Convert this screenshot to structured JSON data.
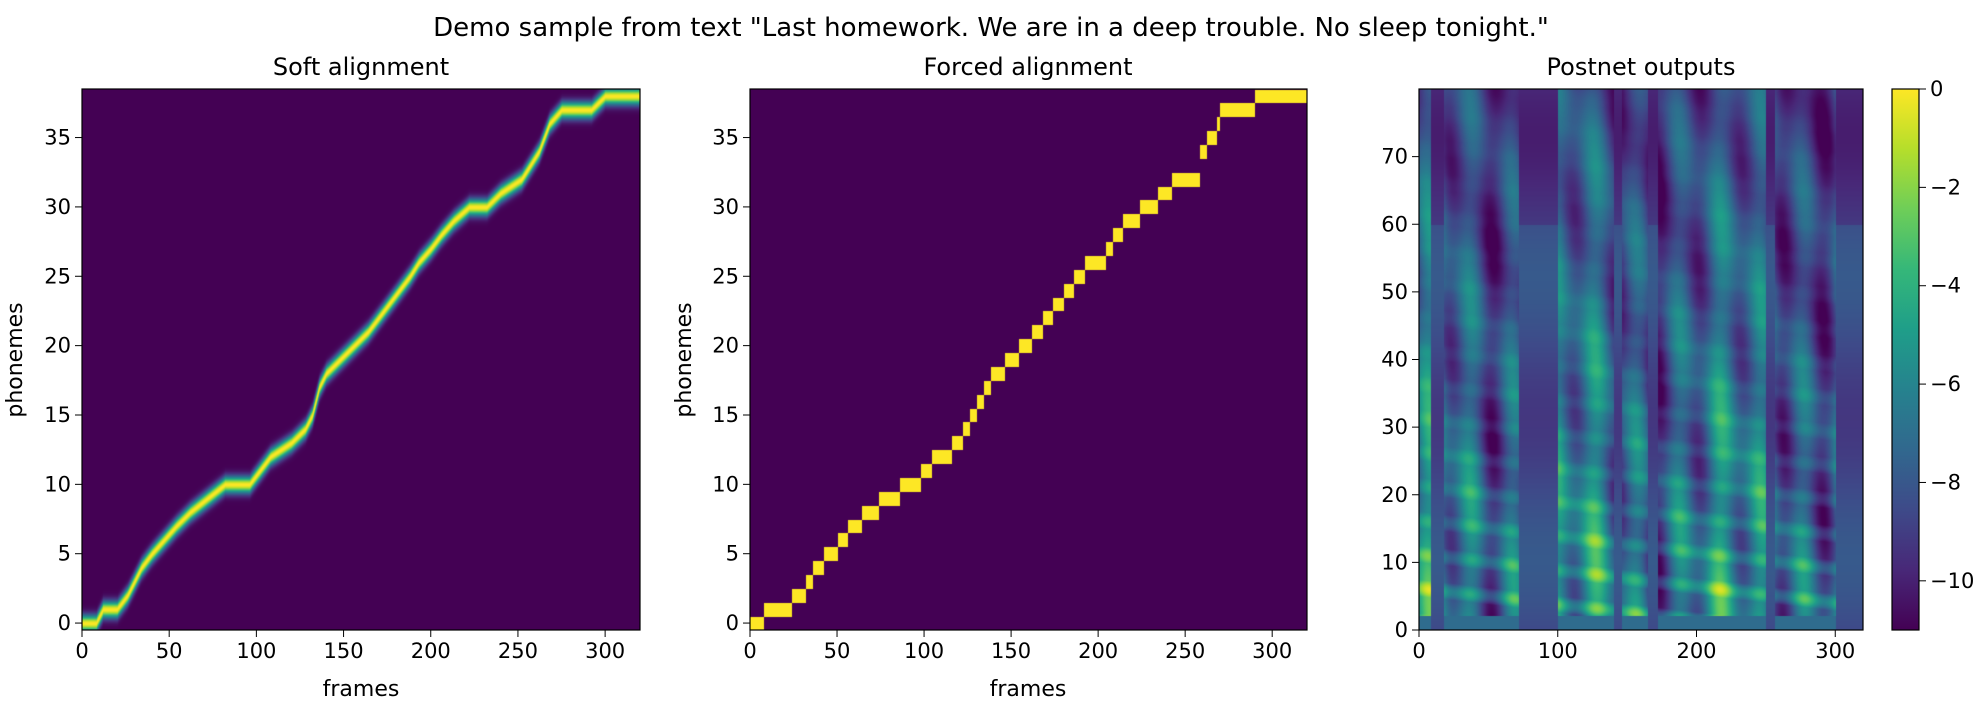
{
  "figure": {
    "suptitle": "Demo sample from text \"Last homework. We are in a deep trouble. No sleep tonight.\""
  },
  "colors": {
    "viridis": [
      "#440154",
      "#482878",
      "#3e4a89",
      "#31688e",
      "#26828e",
      "#1f9e89",
      "#35b779",
      "#6ece58",
      "#b5de2b",
      "#fde725"
    ]
  },
  "chart_data": [
    {
      "type": "heatmap",
      "title": "Soft alignment",
      "xlabel": "frames",
      "ylabel": "phonemes",
      "xlim": [
        0,
        320
      ],
      "ylim": [
        0,
        39
      ],
      "xticks": [
        0,
        50,
        100,
        150,
        200,
        250,
        300
      ],
      "yticks": [
        0,
        5,
        10,
        15,
        20,
        25,
        30,
        35
      ],
      "alignment_path": [
        [
          0,
          0
        ],
        [
          8,
          0
        ],
        [
          12,
          1
        ],
        [
          20,
          1
        ],
        [
          26,
          2
        ],
        [
          30,
          3
        ],
        [
          34,
          4
        ],
        [
          40,
          5
        ],
        [
          47,
          6
        ],
        [
          54,
          7
        ],
        [
          62,
          8
        ],
        [
          72,
          9
        ],
        [
          82,
          10
        ],
        [
          96,
          10
        ],
        [
          102,
          11
        ],
        [
          108,
          12
        ],
        [
          120,
          13
        ],
        [
          128,
          14
        ],
        [
          132,
          15
        ],
        [
          136,
          17
        ],
        [
          140,
          18
        ],
        [
          148,
          19
        ],
        [
          156,
          20
        ],
        [
          164,
          21
        ],
        [
          170,
          22
        ],
        [
          176,
          23
        ],
        [
          182,
          24
        ],
        [
          188,
          25
        ],
        [
          193,
          26
        ],
        [
          200,
          27
        ],
        [
          206,
          28
        ],
        [
          213,
          29
        ],
        [
          222,
          30
        ],
        [
          232,
          30
        ],
        [
          240,
          31
        ],
        [
          252,
          32
        ],
        [
          262,
          34
        ],
        [
          268,
          36
        ],
        [
          275,
          37
        ],
        [
          292,
          37
        ],
        [
          300,
          38
        ],
        [
          320,
          38
        ]
      ]
    },
    {
      "type": "heatmap",
      "title": "Forced alignment",
      "xlabel": "frames",
      "ylabel": "phonemes",
      "xlim": [
        0,
        320
      ],
      "ylim": [
        0,
        39
      ],
      "xticks": [
        0,
        50,
        100,
        150,
        200,
        250,
        300
      ],
      "yticks": [
        0,
        5,
        10,
        15,
        20,
        25,
        30,
        35
      ],
      "alignment_path": [
        [
          0,
          0
        ],
        [
          6,
          0
        ],
        [
          8,
          1
        ],
        [
          22,
          1
        ],
        [
          24,
          2
        ],
        [
          32,
          3
        ],
        [
          36,
          4
        ],
        [
          42,
          5
        ],
        [
          50,
          6
        ],
        [
          56,
          7
        ],
        [
          64,
          8
        ],
        [
          74,
          9
        ],
        [
          86,
          10
        ],
        [
          98,
          11
        ],
        [
          104,
          12
        ],
        [
          116,
          13
        ],
        [
          122,
          14
        ],
        [
          126,
          15
        ],
        [
          130,
          16
        ],
        [
          134,
          17
        ],
        [
          138,
          18
        ],
        [
          146,
          19
        ],
        [
          154,
          20
        ],
        [
          162,
          21
        ],
        [
          168,
          22
        ],
        [
          174,
          23
        ],
        [
          180,
          24
        ],
        [
          186,
          25
        ],
        [
          192,
          26
        ],
        [
          204,
          27
        ],
        [
          208,
          28
        ],
        [
          214,
          29
        ],
        [
          224,
          30
        ],
        [
          234,
          31
        ],
        [
          242,
          32
        ],
        [
          258,
          34
        ],
        [
          262,
          35
        ],
        [
          268,
          36
        ],
        [
          270,
          37
        ],
        [
          290,
          38
        ],
        [
          318,
          38
        ],
        [
          320,
          39
        ]
      ]
    },
    {
      "type": "heatmap",
      "title": "Postnet outputs",
      "xlabel": "",
      "ylabel": "",
      "xlim": [
        0,
        320
      ],
      "ylim": [
        0,
        80
      ],
      "xticks": [
        0,
        100,
        200,
        300
      ],
      "yticks": [
        0,
        10,
        20,
        30,
        40,
        50,
        60,
        70
      ],
      "colorbar": {
        "range": [
          -11,
          0
        ],
        "ticks": [
          0,
          -2,
          -4,
          -6,
          -8,
          -10
        ],
        "tick_labels": [
          "0",
          "−2",
          "−4",
          "−6",
          "−8",
          "−10"
        ]
      },
      "silence_frames": [
        [
          8,
          18
        ],
        [
          72,
          100
        ],
        [
          140,
          146
        ],
        [
          165,
          172
        ],
        [
          250,
          256
        ],
        [
          300,
          320
        ]
      ]
    }
  ]
}
